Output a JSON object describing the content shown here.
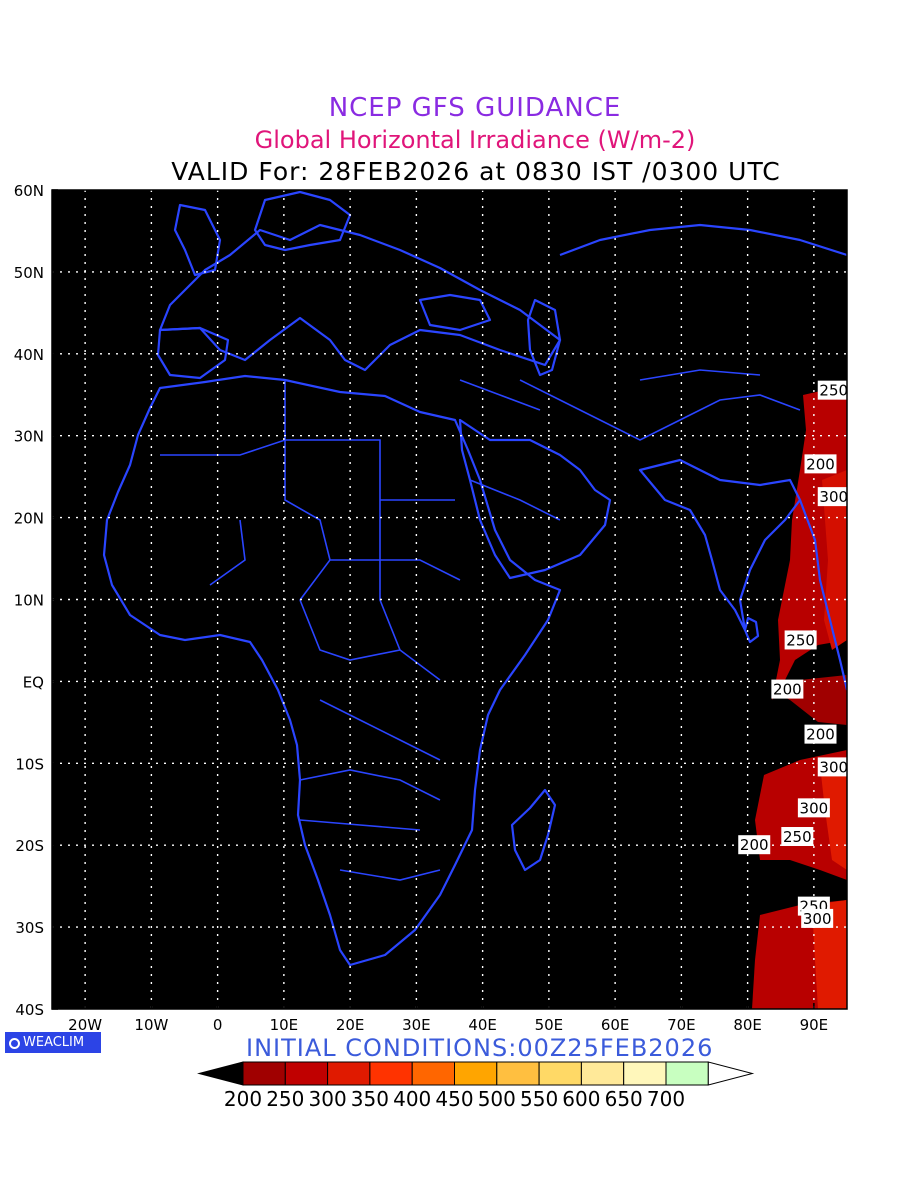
{
  "title": {
    "line1": "NCEP GFS GUIDANCE",
    "line2": "Global Horizontal Irradiance (W/m-2)",
    "line3": "VALID For: 28FEB2026 at 0830 IST /0300 UTC"
  },
  "map": {
    "lat_labels": [
      "60N",
      "50N",
      "40N",
      "30N",
      "20N",
      "10N",
      "EQ",
      "10S",
      "20S",
      "30S",
      "40S"
    ],
    "lon_labels": [
      "20W",
      "10W",
      "0",
      "10E",
      "20E",
      "30E",
      "40E",
      "50E",
      "60E",
      "70E",
      "80E",
      "90E"
    ],
    "extent": {
      "lon_min": -25,
      "lon_max": 95,
      "lat_min": -40,
      "lat_max": 60
    },
    "background_color": "#000000",
    "coastline_color": "#2a45ff",
    "grid": "dotted white",
    "contour_labels": [
      {
        "text": "250",
        "lon": 93,
        "lat": 35.5
      },
      {
        "text": "200",
        "lon": 91,
        "lat": 26.5
      },
      {
        "text": "300",
        "lon": 93,
        "lat": 22.5
      },
      {
        "text": "250",
        "lon": 88,
        "lat": 5
      },
      {
        "text": "200",
        "lon": 86,
        "lat": -1
      },
      {
        "text": "200",
        "lon": 91,
        "lat": -6.5
      },
      {
        "text": "300",
        "lon": 93,
        "lat": -10.5
      },
      {
        "text": "300",
        "lon": 90,
        "lat": -15.5
      },
      {
        "text": "250",
        "lon": 87.5,
        "lat": -19
      },
      {
        "text": "200",
        "lon": 81,
        "lat": -20
      },
      {
        "text": "250",
        "lon": 90,
        "lat": -27.5
      },
      {
        "text": "300",
        "lon": 90.5,
        "lat": -29
      }
    ]
  },
  "initial_conditions": "INITIAL  CONDITIONS:00Z25FEB2026",
  "logo": "WEACLIM",
  "colorbar": {
    "levels": [
      "200",
      "250",
      "300",
      "350",
      "400",
      "450",
      "500",
      "550",
      "600",
      "650",
      "700"
    ],
    "colors": [
      "#a00000",
      "#c00000",
      "#e01a00",
      "#ff3300",
      "#ff6600",
      "#ffa500",
      "#ffbf40",
      "#ffd966",
      "#ffe999",
      "#fff7bb",
      "#c8ffc0"
    ],
    "below_color": "#000000",
    "above_color": "#ffffff"
  }
}
